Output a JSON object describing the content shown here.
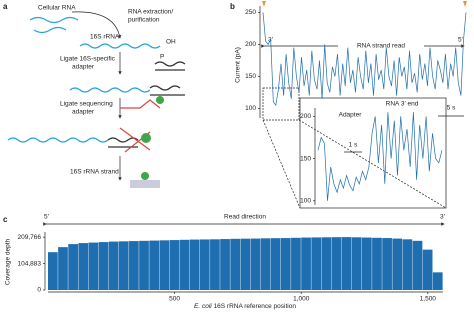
{
  "panel_labels": [
    "a",
    "b",
    "c"
  ],
  "panel_a": {
    "cellular_rna": "Cellular RNA",
    "extraction": [
      "RNA extraction/",
      "purification"
    ],
    "rrna": "16S rRNA",
    "oh": "OH",
    "ligate_specific": [
      "Ligate 16S-specific",
      "adapter"
    ],
    "p": "P",
    "ligate_sequencing": [
      "Ligate sequencing",
      "adapter"
    ],
    "strand": "16S rRNA strand"
  },
  "chart_data": [
    {
      "type": "line",
      "ylabel": "Current (pA)",
      "color": "#1f6fb0",
      "values": [
        250,
        205,
        200,
        208,
        110,
        105,
        130,
        170,
        120,
        185,
        140,
        115,
        195,
        150,
        125,
        180,
        135,
        160,
        120,
        190,
        145,
        130,
        175,
        115,
        200,
        140,
        125,
        165,
        150,
        185,
        120,
        170,
        135,
        195,
        140,
        160,
        125,
        180,
        150,
        130,
        190,
        140,
        170,
        120,
        185,
        145,
        160,
        130,
        195,
        150,
        135,
        175,
        120,
        180,
        150,
        165,
        130,
        190,
        140,
        155,
        125,
        185,
        145,
        170,
        135,
        195,
        150,
        130,
        175,
        160,
        140,
        185,
        130,
        170,
        150,
        195,
        140,
        120,
        205,
        250
      ],
      "ylim": [
        85,
        260
      ],
      "yticks": [
        100,
        150,
        200,
        250
      ],
      "annotations": {
        "start": "3′",
        "middle": "RNA strand read",
        "end": "5′",
        "scale_bar": "5 s"
      }
    },
    {
      "type": "line",
      "color": "#1f6fb0",
      "values": [
        160,
        175,
        168,
        100,
        140,
        120,
        110,
        125,
        115,
        130,
        118,
        112,
        128,
        120,
        135,
        125,
        140,
        180,
        200,
        145,
        190,
        120,
        205,
        150,
        195,
        130,
        200,
        160,
        185,
        140,
        205,
        125,
        190,
        150,
        200,
        135,
        180,
        150,
        145,
        160
      ],
      "ylim": [
        95,
        210
      ],
      "yticks": [
        100,
        150,
        200
      ],
      "annotations": {
        "adapter": "Adapter",
        "rna_end": "RNA 3′ end",
        "scale_bar": "1 s"
      }
    },
    {
      "type": "bar",
      "xlabel_species": "E. coli",
      "xlabel": "16S rRNA reference position",
      "ylabel": "Coverage depth",
      "color": "#1f6fb0",
      "x": [
        20,
        60,
        100,
        140,
        180,
        220,
        260,
        300,
        340,
        380,
        420,
        460,
        500,
        540,
        580,
        620,
        660,
        700,
        740,
        780,
        820,
        860,
        900,
        940,
        980,
        1020,
        1060,
        1100,
        1140,
        1180,
        1220,
        1260,
        1300,
        1340,
        1380,
        1420,
        1460,
        1500,
        1540
      ],
      "values": [
        150000,
        170000,
        182000,
        186000,
        188000,
        190000,
        192000,
        193000,
        194000,
        195000,
        196000,
        197000,
        198000,
        199000,
        200000,
        200500,
        201000,
        202000,
        203000,
        203500,
        204000,
        205000,
        205500,
        206000,
        207000,
        208000,
        208500,
        209000,
        209500,
        209766,
        209000,
        208000,
        207000,
        206000,
        204000,
        201000,
        195000,
        160000,
        70000
      ],
      "bar_width": 40,
      "xlim": [
        0,
        1560
      ],
      "ylim": [
        0,
        230000
      ],
      "xticks": [
        500,
        {
          "value": 1000,
          "label": "1,000"
        },
        {
          "value": 1500,
          "label": "1,500"
        }
      ],
      "yticks": [
        0,
        {
          "value": 104883,
          "label": "104,883"
        },
        {
          "value": 209766,
          "label": "209,766"
        }
      ],
      "annotations": {
        "start": "5′",
        "direction": "Read direction",
        "end": "3′"
      }
    }
  ]
}
